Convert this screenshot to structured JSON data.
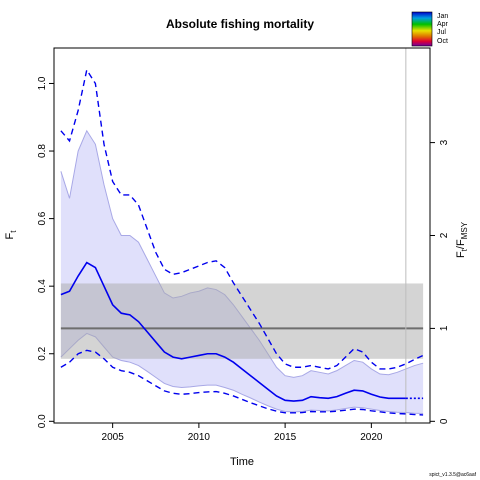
{
  "chart_data": {
    "type": "line",
    "title": "Absolute fishing mortality",
    "xlabel": "Time",
    "ylabel": "F",
    "ylabel_sub": "t",
    "y2label": {
      "F": "F",
      "t": "t",
      "slash": "/",
      "F2": "F",
      "msy": "MSY"
    },
    "xlim": [
      2001.6,
      2023.4
    ],
    "ylim": [
      -0.005,
      1.105
    ],
    "x_ticks": [
      2005,
      2010,
      2015,
      2020
    ],
    "y_ticks": [
      0.0,
      0.2,
      0.4,
      0.6,
      0.8,
      1.0
    ],
    "y_tick_labels": [
      "0.0",
      "0.2",
      "0.4",
      "0.6",
      "0.8",
      "1.0"
    ],
    "y2_ticks": [
      0,
      1,
      2,
      3
    ],
    "y2_tick_labels": [
      "0",
      "1",
      "2",
      "3"
    ],
    "fmsy": 0.275,
    "fmsy_ci": [
      0.185,
      0.408
    ],
    "fmsy_ci_x": [
      2002,
      2023
    ],
    "last_obs_year": 2022,
    "vline_x": 2022,
    "series": [
      {
        "role": "estimate",
        "x": [
          2002,
          2002.5,
          2003,
          2003.5,
          2004,
          2004.5,
          2005,
          2005.5,
          2006,
          2006.5,
          2007,
          2007.5,
          2008,
          2008.5,
          2009,
          2009.5,
          2010,
          2010.5,
          2011,
          2011.5,
          2012,
          2012.5,
          2013,
          2013.5,
          2014,
          2014.5,
          2015,
          2015.5,
          2016,
          2016.5,
          2017,
          2017.5,
          2018,
          2018.5,
          2019,
          2019.5,
          2020,
          2020.5,
          2021,
          2021.5,
          2022,
          2022.5,
          2023
        ],
        "values": [
          0.375,
          0.385,
          0.43,
          0.47,
          0.455,
          0.4,
          0.345,
          0.32,
          0.315,
          0.295,
          0.265,
          0.235,
          0.205,
          0.19,
          0.185,
          0.19,
          0.195,
          0.2,
          0.2,
          0.19,
          0.175,
          0.155,
          0.135,
          0.115,
          0.095,
          0.075,
          0.062,
          0.06,
          0.062,
          0.073,
          0.07,
          0.068,
          0.073,
          0.083,
          0.092,
          0.09,
          0.08,
          0.072,
          0.068,
          0.068,
          0.068,
          0.068,
          0.068
        ]
      },
      {
        "role": "upper_ci",
        "x": [
          2002,
          2002.5,
          2003,
          2003.5,
          2004,
          2004.5,
          2005,
          2005.5,
          2006,
          2006.5,
          2007,
          2007.5,
          2008,
          2008.5,
          2009,
          2009.5,
          2010,
          2010.5,
          2011,
          2011.5,
          2012,
          2012.5,
          2013,
          2013.5,
          2014,
          2014.5,
          2015,
          2015.5,
          2016,
          2016.5,
          2017,
          2017.5,
          2018,
          2018.5,
          2019,
          2019.5,
          2020,
          2020.5,
          2021,
          2021.5,
          2022,
          2022.5,
          2023
        ],
        "values": [
          0.74,
          0.66,
          0.8,
          0.86,
          0.82,
          0.7,
          0.6,
          0.55,
          0.55,
          0.53,
          0.48,
          0.43,
          0.38,
          0.365,
          0.37,
          0.38,
          0.385,
          0.395,
          0.39,
          0.375,
          0.345,
          0.31,
          0.275,
          0.24,
          0.2,
          0.16,
          0.135,
          0.13,
          0.135,
          0.15,
          0.145,
          0.14,
          0.15,
          0.165,
          0.18,
          0.175,
          0.155,
          0.14,
          0.138,
          0.145,
          0.155,
          0.165,
          0.172
        ]
      },
      {
        "role": "lower_ci",
        "x": [
          2002,
          2002.5,
          2003,
          2003.5,
          2004,
          2004.5,
          2005,
          2005.5,
          2006,
          2006.5,
          2007,
          2007.5,
          2008,
          2008.5,
          2009,
          2009.5,
          2010,
          2010.5,
          2011,
          2011.5,
          2012,
          2012.5,
          2013,
          2013.5,
          2014,
          2014.5,
          2015,
          2015.5,
          2016,
          2016.5,
          2017,
          2017.5,
          2018,
          2018.5,
          2019,
          2019.5,
          2020,
          2020.5,
          2021,
          2021.5,
          2022,
          2022.5,
          2023
        ],
        "values": [
          0.19,
          0.215,
          0.24,
          0.26,
          0.25,
          0.22,
          0.19,
          0.18,
          0.175,
          0.165,
          0.148,
          0.13,
          0.112,
          0.103,
          0.1,
          0.102,
          0.105,
          0.107,
          0.107,
          0.1,
          0.092,
          0.08,
          0.069,
          0.057,
          0.046,
          0.036,
          0.029,
          0.028,
          0.029,
          0.033,
          0.032,
          0.031,
          0.034,
          0.038,
          0.042,
          0.04,
          0.036,
          0.032,
          0.029,
          0.027,
          0.026,
          0.024,
          0.023
        ]
      },
      {
        "role": "upper_pi",
        "x": [
          2002,
          2002.5,
          2003,
          2003.5,
          2004,
          2004.5,
          2005,
          2005.5,
          2006,
          2006.5,
          2007,
          2007.5,
          2008,
          2008.5,
          2009,
          2009.5,
          2010,
          2010.5,
          2011,
          2011.5,
          2012,
          2012.5,
          2013,
          2013.5,
          2014,
          2014.5,
          2015,
          2015.5,
          2016,
          2016.5,
          2017,
          2017.5,
          2018,
          2018.5,
          2019,
          2019.5,
          2020,
          2020.5,
          2021,
          2021.5,
          2022,
          2022.5,
          2023
        ],
        "values": [
          0.86,
          0.83,
          0.92,
          1.04,
          1.0,
          0.82,
          0.71,
          0.67,
          0.67,
          0.64,
          0.57,
          0.5,
          0.45,
          0.435,
          0.44,
          0.45,
          0.46,
          0.47,
          0.475,
          0.455,
          0.41,
          0.37,
          0.33,
          0.29,
          0.245,
          0.2,
          0.17,
          0.16,
          0.16,
          0.165,
          0.16,
          0.155,
          0.165,
          0.19,
          0.215,
          0.205,
          0.175,
          0.155,
          0.155,
          0.16,
          0.17,
          0.183,
          0.195
        ]
      },
      {
        "role": "lower_pi",
        "x": [
          2002,
          2002.5,
          2003,
          2003.5,
          2004,
          2004.5,
          2005,
          2005.5,
          2006,
          2006.5,
          2007,
          2007.5,
          2008,
          2008.5,
          2009,
          2009.5,
          2010,
          2010.5,
          2011,
          2011.5,
          2012,
          2012.5,
          2013,
          2013.5,
          2014,
          2014.5,
          2015,
          2015.5,
          2016,
          2016.5,
          2017,
          2017.5,
          2018,
          2018.5,
          2019,
          2019.5,
          2020,
          2020.5,
          2021,
          2021.5,
          2022,
          2022.5,
          2023
        ],
        "values": [
          0.16,
          0.175,
          0.2,
          0.21,
          0.205,
          0.185,
          0.16,
          0.15,
          0.145,
          0.135,
          0.12,
          0.105,
          0.09,
          0.083,
          0.08,
          0.082,
          0.085,
          0.087,
          0.088,
          0.083,
          0.075,
          0.065,
          0.055,
          0.046,
          0.037,
          0.03,
          0.025,
          0.025,
          0.026,
          0.029,
          0.028,
          0.028,
          0.03,
          0.033,
          0.036,
          0.035,
          0.031,
          0.028,
          0.025,
          0.023,
          0.022,
          0.02,
          0.019
        ]
      }
    ],
    "legend": {
      "placement": "top-right",
      "labels": [
        "Jan",
        "Apr",
        "Jul",
        "Oct"
      ]
    },
    "colors": {
      "estimate": "#0000ee",
      "ci_fill": "#e0e0fb",
      "ci_edge": "#a8a8e6",
      "pi_line": "#0000ee",
      "fmsy_line": "#6e6e6e",
      "fmsy_band": "#a9a9a9",
      "vline": "#bdbdbd",
      "axis": "#000000"
    }
  },
  "footer": {
    "version": "spict_v1.3.5@ac6aaf"
  }
}
